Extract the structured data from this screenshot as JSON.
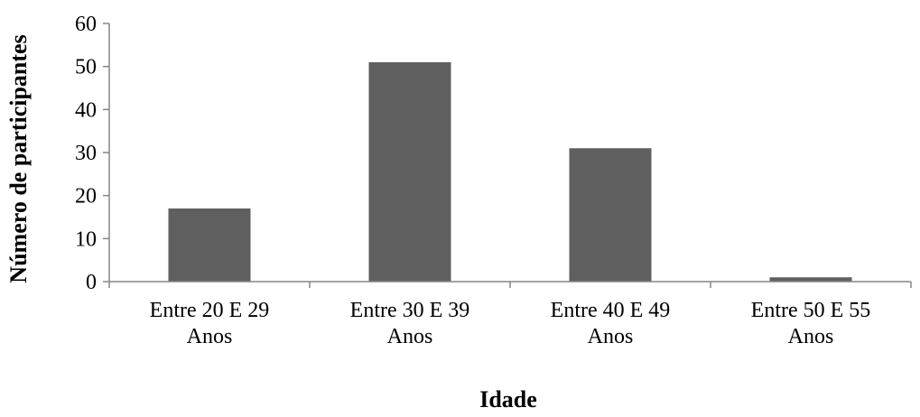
{
  "chart_data": {
    "type": "bar",
    "categories": [
      [
        "Entre 20 E 29",
        "Anos"
      ],
      [
        "Entre 30 E 39",
        "Anos"
      ],
      [
        "Entre 40 E 49",
        "Anos"
      ],
      [
        "Entre 50 E 55",
        "Anos"
      ]
    ],
    "values": [
      17,
      51,
      31,
      1
    ],
    "xlabel": "Idade",
    "ylabel": "Número de participantes",
    "ylim": [
      0,
      60
    ],
    "yticks": [
      0,
      10,
      20,
      30,
      40,
      50,
      60
    ],
    "grid": false,
    "legend": "none",
    "colors": {
      "bar": "#5f5f5f",
      "axis": "#868686"
    }
  }
}
